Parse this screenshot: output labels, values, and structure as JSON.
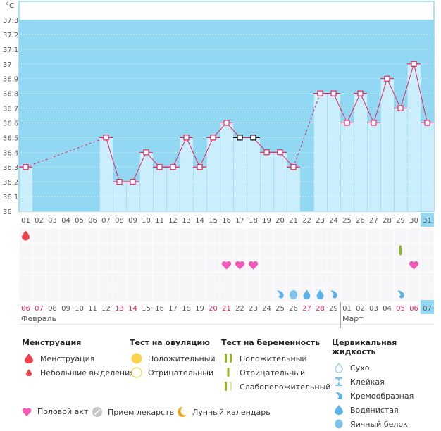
{
  "chart_data": {
    "type": "line",
    "title": "",
    "ylabel": "°C",
    "ylim": [
      36,
      37.3
    ],
    "yticks": [
      "36",
      "36.1",
      "36.2",
      "36.3",
      "36.4",
      "36.5",
      "36.6",
      "36.7",
      "36.8",
      "36.9",
      "37",
      "37.1",
      "37.2",
      "37.3"
    ],
    "x_days": [
      "01",
      "02",
      "03",
      "04",
      "05",
      "06",
      "07",
      "08",
      "09",
      "10",
      "11",
      "12",
      "13",
      "14",
      "15",
      "16",
      "17",
      "18",
      "19",
      "20",
      "21",
      "22",
      "23",
      "24",
      "25",
      "26",
      "27",
      "28",
      "29",
      "30",
      "31"
    ],
    "temperatures": [
      36.3,
      null,
      null,
      null,
      null,
      null,
      36.5,
      36.2,
      36.2,
      36.4,
      36.3,
      36.3,
      36.5,
      36.3,
      36.5,
      36.6,
      36.5,
      36.5,
      36.4,
      36.4,
      36.3,
      null,
      36.8,
      36.8,
      36.6,
      36.8,
      36.6,
      36.9,
      36.7,
      37.0,
      36.6
    ],
    "excluded_points": [
      "17",
      "18"
    ],
    "current_day_index": 30,
    "dates": [
      {
        "d": "06",
        "red": true
      },
      {
        "d": "07",
        "red": true
      },
      {
        "d": "08",
        "red": false
      },
      {
        "d": "09",
        "red": false
      },
      {
        "d": "10",
        "red": false
      },
      {
        "d": "11",
        "red": false
      },
      {
        "d": "12",
        "red": false
      },
      {
        "d": "13",
        "red": true
      },
      {
        "d": "14",
        "red": true
      },
      {
        "d": "15",
        "red": false
      },
      {
        "d": "16",
        "red": false
      },
      {
        "d": "17",
        "red": false
      },
      {
        "d": "18",
        "red": false
      },
      {
        "d": "19",
        "red": false
      },
      {
        "d": "20",
        "red": true
      },
      {
        "d": "21",
        "red": true
      },
      {
        "d": "22",
        "red": false
      },
      {
        "d": "23",
        "red": false
      },
      {
        "d": "24",
        "red": false
      },
      {
        "d": "25",
        "red": false
      },
      {
        "d": "26",
        "red": false
      },
      {
        "d": "27",
        "red": true
      },
      {
        "d": "28",
        "red": true
      },
      {
        "d": "29",
        "red": false
      },
      {
        "d": "01",
        "red": false
      },
      {
        "d": "02",
        "red": false
      },
      {
        "d": "03",
        "red": false
      },
      {
        "d": "04",
        "red": false
      },
      {
        "d": "05",
        "red": true
      },
      {
        "d": "06",
        "red": true
      },
      {
        "d": "07",
        "red": false
      }
    ],
    "months": [
      {
        "label": "Февраль",
        "start_index": 0
      },
      {
        "label": "Март",
        "start_index": 24
      }
    ],
    "symbols": [
      {
        "day_index": 0,
        "row": 0,
        "type": "menstruation"
      },
      {
        "day_index": 28,
        "row": 1,
        "type": "pregnancy-negative"
      },
      {
        "day_index": 15,
        "row": 2,
        "type": "intercourse"
      },
      {
        "day_index": 16,
        "row": 2,
        "type": "intercourse"
      },
      {
        "day_index": 17,
        "row": 2,
        "type": "intercourse"
      },
      {
        "day_index": 29,
        "row": 2,
        "type": "intercourse"
      },
      {
        "day_index": 19,
        "row": 4,
        "type": "creamy"
      },
      {
        "day_index": 20,
        "row": 4,
        "type": "egg-white"
      },
      {
        "day_index": 21,
        "row": 4,
        "type": "watery"
      },
      {
        "day_index": 22,
        "row": 4,
        "type": "watery"
      },
      {
        "day_index": 23,
        "row": 4,
        "type": "creamy"
      },
      {
        "day_index": 28,
        "row": 4,
        "type": "creamy"
      }
    ],
    "colors": {
      "plot_bg": "#93d8f3",
      "bar": "#cbeefc",
      "line": "#e8245c",
      "weekend": "#e8245c",
      "current": "#93d8f3"
    }
  },
  "legend": {
    "menstruation": {
      "title": "Менструация",
      "items": [
        "Менструация",
        "Небольшие выделения"
      ]
    },
    "ovulation": {
      "title": "Тест на овуляцию",
      "items": [
        "Положительный",
        "Отрицательный"
      ]
    },
    "pregnancy": {
      "title": "Тест на беременность",
      "items": [
        "Положительный",
        "Отрицательный",
        "Слабоположительный"
      ]
    },
    "cervical": {
      "title": "Цервикальная жидкость",
      "items": [
        "Сухо",
        "Клейкая",
        "Кремообразная",
        "Водянистая",
        "Яичный белок"
      ]
    },
    "bottom": [
      "Половой акт",
      "Прием лекарств",
      "Лунный календарь"
    ]
  }
}
